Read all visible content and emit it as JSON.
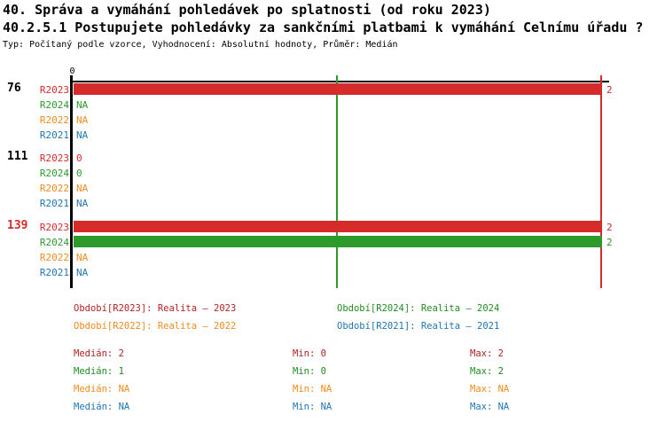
{
  "header": {
    "title1": "40. Správa a vymáhání pohledávek po splatnosti (od roku 2023)",
    "title2": "40.2.5.1 Postupujete pohledávky za sankčními platbami k vymáhání Celnímu úřadu ?",
    "meta": "Typ: Počítaný podle vzorce, Vyhodnocení: Absolutní hodnoty, Průměr: Medián"
  },
  "colors": {
    "bar_red": "#d62b2b",
    "bar_green": "#2b9a2b",
    "orange": "#ef8a1e",
    "blue": "#2076b4",
    "legend_red": "#b22222",
    "legend_green": "#228b22",
    "axis_black": "#000000"
  },
  "chart_data": {
    "type": "bar",
    "orientation": "horizontal",
    "title": "40.2.5.1 Postupujete pohledávky za sankčními platbami k vymáhání Celnímu úřadu ?",
    "axis": {
      "min": 0,
      "max": 2,
      "zero_label": "0"
    },
    "median_lines": [
      {
        "series": "R2024",
        "value": 1,
        "color": "#2b9a2b"
      },
      {
        "series": "R2023",
        "value": 2,
        "color": "#d62b2b"
      }
    ],
    "groups": [
      {
        "id": "76",
        "id_color": "#000000",
        "rows": [
          {
            "series": "R2023",
            "color": "#d62b2b",
            "value": 2,
            "display": "2",
            "bar": true
          },
          {
            "series": "R2024",
            "color": "#2b9a2b",
            "value": null,
            "display": "NA",
            "bar": false
          },
          {
            "series": "R2022",
            "color": "#ef8a1e",
            "value": null,
            "display": "NA",
            "bar": false
          },
          {
            "series": "R2021",
            "color": "#2076b4",
            "value": null,
            "display": "NA",
            "bar": false
          }
        ]
      },
      {
        "id": "111",
        "id_color": "#000000",
        "rows": [
          {
            "series": "R2023",
            "color": "#d62b2b",
            "value": 0,
            "display": "0",
            "bar": false
          },
          {
            "series": "R2024",
            "color": "#2b9a2b",
            "value": 0,
            "display": "0",
            "bar": false
          },
          {
            "series": "R2022",
            "color": "#ef8a1e",
            "value": null,
            "display": "NA",
            "bar": false
          },
          {
            "series": "R2021",
            "color": "#2076b4",
            "value": null,
            "display": "NA",
            "bar": false
          }
        ]
      },
      {
        "id": "139",
        "id_color": "#d62b2b",
        "rows": [
          {
            "series": "R2023",
            "color": "#d62b2b",
            "value": 2,
            "display": "2",
            "bar": true
          },
          {
            "series": "R2024",
            "color": "#2b9a2b",
            "value": 2,
            "display": "2",
            "bar": true
          },
          {
            "series": "R2022",
            "color": "#ef8a1e",
            "value": null,
            "display": "NA",
            "bar": false
          },
          {
            "series": "R2021",
            "color": "#2076b4",
            "value": null,
            "display": "NA",
            "bar": false
          }
        ]
      }
    ]
  },
  "legend": {
    "items": [
      {
        "label": "Období[R2023]: Realita – 2023",
        "color": "#b22222",
        "col": 0,
        "row": 0
      },
      {
        "label": "Období[R2024]: Realita – 2024",
        "color": "#228b22",
        "col": 1,
        "row": 0
      },
      {
        "label": "Období[R2022]: Realita – 2022",
        "color": "#ef8a1e",
        "col": 0,
        "row": 1
      },
      {
        "label": "Období[R2021]: Realita – 2021",
        "color": "#2076b4",
        "col": 1,
        "row": 1
      }
    ]
  },
  "stats": {
    "labels": {
      "median": "Medián",
      "min": "Min",
      "max": "Max"
    },
    "rows": [
      {
        "color": "#b22222",
        "median": "2",
        "min": "0",
        "max": "2"
      },
      {
        "color": "#228b22",
        "median": "1",
        "min": "0",
        "max": "2"
      },
      {
        "color": "#ef8a1e",
        "median": "NA",
        "min": "NA",
        "max": "NA"
      },
      {
        "color": "#2076b4",
        "median": "NA",
        "min": "NA",
        "max": "NA"
      }
    ]
  }
}
